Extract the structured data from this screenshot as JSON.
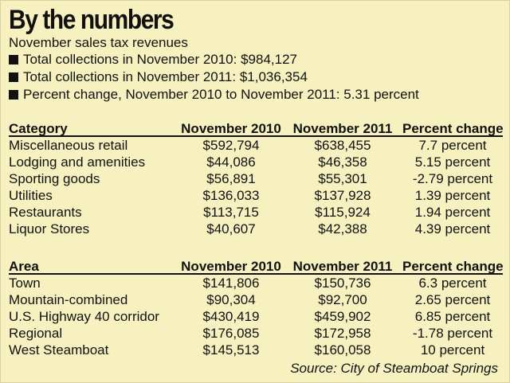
{
  "title": "By the numbers",
  "subtitle": "November sales tax revenues",
  "bullets": [
    "Total collections in November 2010: $984,127",
    "Total collections in November 2011: $1,036,354",
    "Percent change, November 2010 to November 2011: 5.31 percent"
  ],
  "category_table": {
    "headers": [
      "Category",
      "November 2010",
      "November 2011",
      "Percent change"
    ],
    "rows": [
      [
        "Miscellaneous retail",
        "$592,794",
        "$638,455",
        "7.7 percent"
      ],
      [
        "Lodging and amenities",
        "$44,086",
        "$46,358",
        "5.15 percent"
      ],
      [
        "Sporting goods",
        "$56,891",
        "$55,301",
        "-2.79 percent"
      ],
      [
        "Utilities",
        "$136,033",
        "$137,928",
        "1.39 percent"
      ],
      [
        "Restaurants",
        "$113,715",
        "$115,924",
        "1.94 percent"
      ],
      [
        "Liquor Stores",
        "$40,607",
        "$42,388",
        "4.39 percent"
      ]
    ]
  },
  "area_table": {
    "headers": [
      "Area",
      "November 2010",
      "November 2011",
      "Percent change"
    ],
    "rows": [
      [
        "Town",
        "$141,806",
        "$150,736",
        "6.3 percent"
      ],
      [
        "Mountain-combined",
        "$90,304",
        "$92,700",
        "2.65 percent"
      ],
      [
        "U.S. Highway 40 corridor",
        "$430,419",
        "$459,902",
        "6.85 percent"
      ],
      [
        "Regional",
        "$176,085",
        "$172,958",
        "-1.78 percent"
      ],
      [
        "West Steamboat",
        "$145,513",
        "$160,058",
        "10 percent"
      ]
    ]
  },
  "source": "Source: City of Steamboat Springs",
  "colors": {
    "background": "#f6f1bf",
    "text": "#111111"
  }
}
